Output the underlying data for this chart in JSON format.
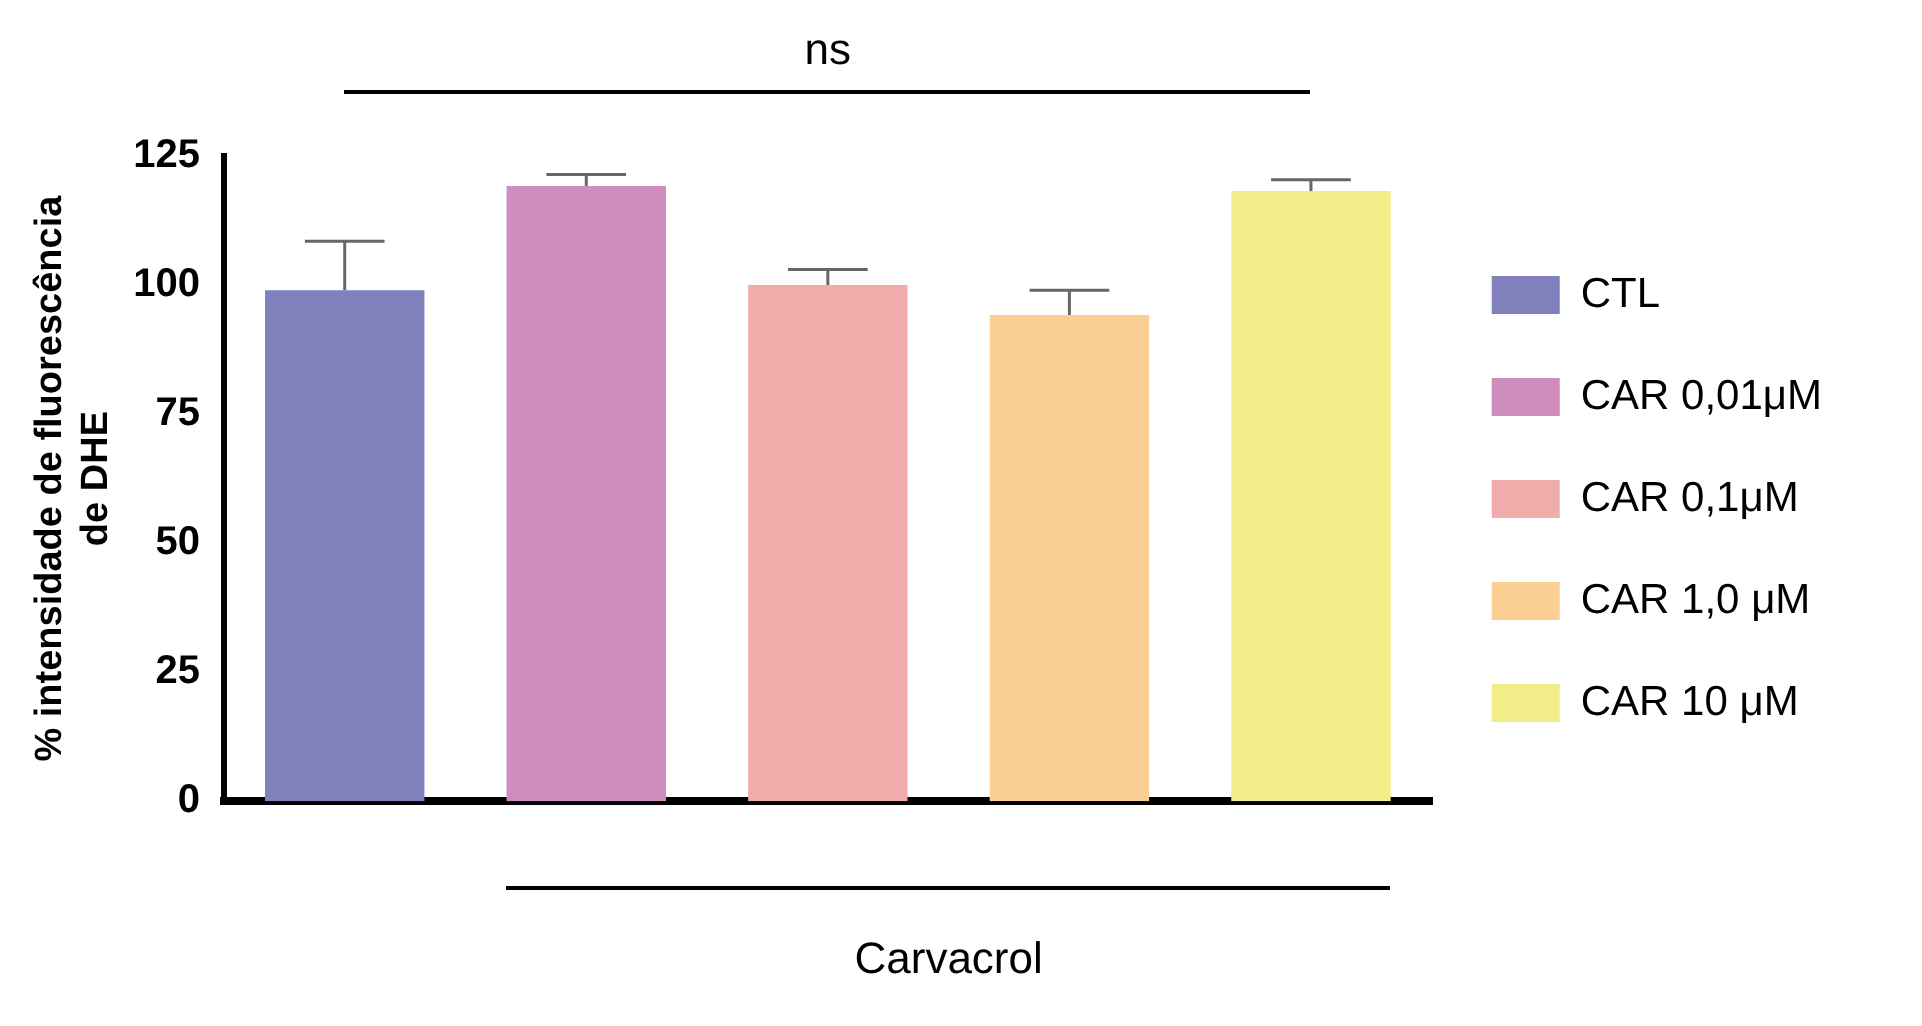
{
  "chart_data": {
    "type": "bar",
    "ylabel": "% intensidade de fluorescência de DHE",
    "categories": [
      null,
      null,
      null,
      null,
      null
    ],
    "ylim": [
      0,
      125
    ],
    "yticks": [
      0,
      25,
      50,
      75,
      100,
      125
    ],
    "grid": false,
    "legend": "right",
    "series": [
      {
        "name": "CTL",
        "color": "#8080bd",
        "values": [
          99,
          null,
          null,
          null,
          null
        ],
        "errors": [
          [
            99,
            108.5
          ],
          null,
          null,
          null,
          null
        ]
      },
      {
        "name": "CAR 0,01μM",
        "color": "#cf8dbd",
        "values": [
          null,
          119.2,
          null,
          null,
          null
        ],
        "errors": [
          null,
          [
            119.2,
            121.4
          ],
          null,
          null,
          null
        ]
      },
      {
        "name": "CAR 0,1μM",
        "color": "#f0abab",
        "values": [
          null,
          null,
          100,
          null,
          null
        ],
        "errors": [
          null,
          null,
          [
            100,
            103
          ],
          null,
          null
        ]
      },
      {
        "name": "CAR 1,0 μM",
        "color": "#fbcf94",
        "values": [
          null,
          null,
          null,
          94.2,
          null
        ],
        "errors": [
          null,
          null,
          null,
          [
            94.2,
            99
          ],
          null
        ]
      },
      {
        "name": "CAR 10 μM",
        "color": "#f1ee8a",
        "values": [
          null,
          null,
          null,
          null,
          118.2
        ],
        "errors": [
          null,
          null,
          null,
          null,
          [
            118.2,
            120.4
          ]
        ]
      }
    ],
    "annotations": [
      "ns",
      "Carvacrol"
    ]
  }
}
